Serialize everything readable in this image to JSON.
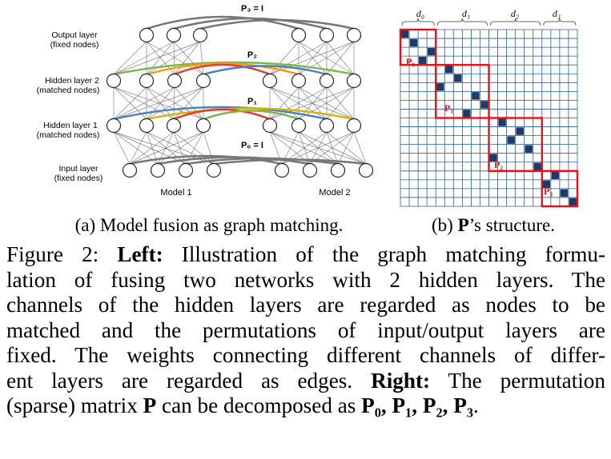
{
  "figure": {
    "panel_a": {
      "layer_labels": [
        {
          "line1": "Output layer",
          "line2": "(fixed nodes)"
        },
        {
          "line1": "Hidden layer 2",
          "line2": "(matched nodes)"
        },
        {
          "line1": "Hidden layer 1",
          "line2": "(matched nodes)"
        },
        {
          "line1": "Input layer",
          "line2": "(fixed nodes)"
        }
      ],
      "perm_labels": {
        "p3": "P₃ = I",
        "p2": "P₂",
        "p1": "P₁",
        "p0": "P₀ = I"
      },
      "model_labels": [
        "Model 1",
        "Model 2"
      ],
      "colors": {
        "node": "#ffffff",
        "edge": "#666666",
        "arc_gray": "#777777",
        "arc_green": "#7ab648",
        "arc_orange": "#f39c12",
        "arc_red": "#e03c31",
        "arc_blue": "#4a7fc1",
        "arc_yellow": "#d4b106"
      }
    },
    "panel_b": {
      "column_labels": [
        "d₀",
        "d₁",
        "d₂",
        "d₃"
      ],
      "block_labels": [
        "P₀",
        "P₁",
        "P₂",
        "P₃"
      ],
      "colors": {
        "grid": "#2e5c8a",
        "filled": "#1f3a66",
        "block": "#e8111a"
      }
    },
    "subcaption_a": "(a) Model fusion as graph matching.",
    "subcaption_b_bold": "P",
    "subcaption_b_rest": "’s structure.",
    "subcaption_b_prefix": "(b) "
  },
  "caption": {
    "lines": [
      [
        {
          "t": "Figure 2: ",
          "b": false
        },
        {
          "t": "Left:",
          "b": true
        },
        {
          "t": " Illustration of the graph matching formu-",
          "b": false
        }
      ],
      [
        {
          "t": "lation of fusing two networks with 2 hidden layers. The",
          "b": false
        }
      ],
      [
        {
          "t": "channels of the hidden layers are regarded as nodes to be",
          "b": false
        }
      ],
      [
        {
          "t": "matched and the permutations of input/output layers are",
          "b": false
        }
      ],
      [
        {
          "t": "fixed. The weights connecting different channels of differ-",
          "b": false
        }
      ],
      [
        {
          "t": "ent layers are regarded as edges. ",
          "b": false
        },
        {
          "t": "Right:",
          "b": true
        },
        {
          "t": " The permutation",
          "b": false
        }
      ],
      [
        {
          "t": "(sparse) matrix ",
          "b": false
        },
        {
          "t": "P",
          "b": true
        },
        {
          "t": " can be decomposed as ",
          "b": false
        },
        {
          "t": "P₀, P₁, P₂, P₃",
          "b": true
        },
        {
          "t": ".",
          "b": false
        }
      ]
    ]
  }
}
